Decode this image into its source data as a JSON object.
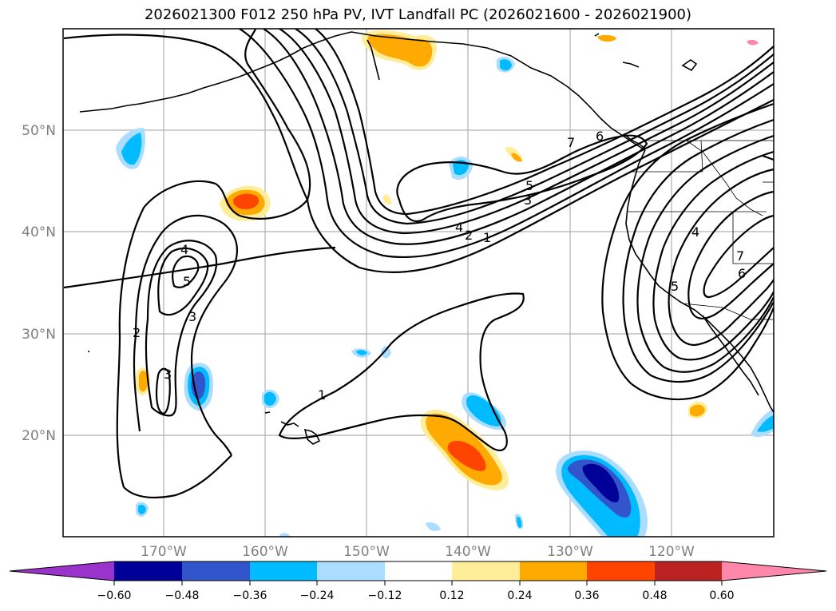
{
  "title": "2026021300 F012 250 hPa PV, IVT Landfall PC (2026021600 - 2026021900)",
  "map": {
    "longitude_labels": [
      "170°W",
      "160°W",
      "150°W",
      "140°W",
      "130°W",
      "120°W"
    ],
    "latitude_labels": [
      "50°N",
      "40°N",
      "30°N",
      "20°N"
    ],
    "gridlines": true,
    "contour_labels": [
      "1",
      "2",
      "3",
      "4",
      "5",
      "6",
      "7"
    ]
  },
  "colorbar": {
    "tick_labels": [
      "−0.60",
      "−0.48",
      "−0.36",
      "−0.24",
      "−0.12",
      "0.12",
      "0.24",
      "0.36",
      "0.48",
      "0.60"
    ],
    "colors": [
      "#9933cc",
      "#000099",
      "#3355cc",
      "#00bbff",
      "#aaddff",
      "#ffffff",
      "#ffee99",
      "#ffaa00",
      "#ff4400",
      "#bb2222",
      "#ff88aa"
    ],
    "extend": "both"
  }
}
